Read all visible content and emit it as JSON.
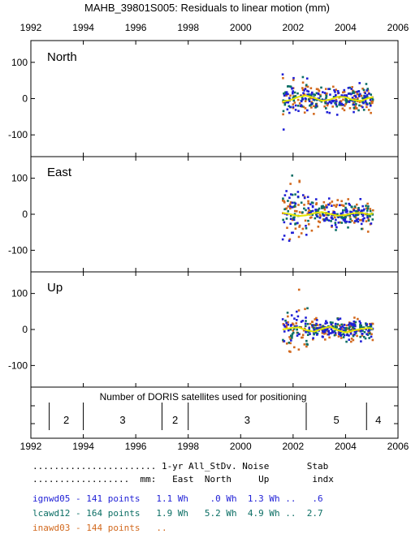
{
  "title": "MAHB_39801S005: Residuals to linear motion (mm)",
  "colors": {
    "ignwd05": "#1f1fd6",
    "lcawd12": "#0b6e64",
    "inawd03": "#d2691e",
    "fit": "#e6e600",
    "frame": "#000000"
  },
  "chart_data": [
    {
      "type": "scatter",
      "panel": "North",
      "xlim": [
        1992,
        2006
      ],
      "ylim": [
        -160,
        160
      ],
      "x_ticks": [
        1992,
        1994,
        1996,
        1998,
        2000,
        2002,
        2004,
        2006
      ],
      "x_tick_labels": [
        "1992",
        "1994",
        "1996",
        "1998",
        "2000",
        "2002",
        "2004",
        "2006"
      ],
      "y_ticks": [
        100,
        0,
        -100
      ],
      "y_tick_labels": [
        "100",
        "0",
        "-100"
      ],
      "series": [
        {
          "solution": "ignwd05",
          "x_range": [
            2001.6,
            2005.05
          ],
          "spread": 22,
          "early_spread": 35
        },
        {
          "solution": "lcawd12",
          "x_range": [
            2001.6,
            2005.05
          ],
          "spread": 20,
          "early_spread": 32
        },
        {
          "solution": "inawd03",
          "x_range": [
            2001.6,
            2005.05
          ],
          "spread": 25,
          "early_spread": 38
        }
      ],
      "fit_curve": {
        "x": [
          2001.6,
          2001.9,
          2002.2,
          2002.5,
          2002.8,
          2003.1,
          2003.4,
          2003.7,
          2004.0,
          2004.3,
          2004.6,
          2004.9,
          2005.05
        ],
        "y": [
          -8,
          -4,
          5,
          8,
          2,
          -6,
          -3,
          5,
          4,
          -4,
          -6,
          2,
          4
        ]
      }
    },
    {
      "type": "scatter",
      "panel": "East",
      "xlim": [
        1992,
        2006
      ],
      "ylim": [
        -160,
        160
      ],
      "y_ticks": [
        100,
        0,
        -100
      ],
      "y_tick_labels": [
        "100",
        "0",
        "-100"
      ],
      "series": [
        {
          "solution": "ignwd05",
          "x_range": [
            2001.6,
            2005.05
          ],
          "spread": 25,
          "early_spread": 55
        },
        {
          "solution": "lcawd12",
          "x_range": [
            2001.6,
            2005.05
          ],
          "spread": 22,
          "early_spread": 50
        },
        {
          "solution": "inawd03",
          "x_range": [
            2001.6,
            2005.05
          ],
          "spread": 27,
          "early_spread": 55
        }
      ],
      "fit_curve": {
        "x": [
          2001.6,
          2001.9,
          2002.2,
          2002.5,
          2002.8,
          2003.1,
          2003.4,
          2003.7,
          2004.0,
          2004.3,
          2004.6,
          2004.9,
          2005.05
        ],
        "y": [
          4,
          0,
          -5,
          -3,
          3,
          6,
          1,
          -4,
          -2,
          3,
          4,
          0,
          2
        ]
      }
    },
    {
      "type": "scatter",
      "panel": "Up",
      "xlim": [
        1992,
        2006
      ],
      "ylim": [
        -160,
        160
      ],
      "y_ticks": [
        100,
        0,
        -100
      ],
      "y_tick_labels": [
        "100",
        "0",
        "-100"
      ],
      "series": [
        {
          "solution": "ignwd05",
          "x_range": [
            2001.6,
            2005.05
          ],
          "spread": 18,
          "early_spread": 45
        },
        {
          "solution": "lcawd12",
          "x_range": [
            2001.6,
            2005.05
          ],
          "spread": 17,
          "early_spread": 45
        },
        {
          "solution": "inawd03",
          "x_range": [
            2001.6,
            2005.05
          ],
          "spread": 20,
          "early_spread": 50
        }
      ],
      "fit_curve": {
        "x": [
          2001.6,
          2001.9,
          2002.2,
          2002.5,
          2002.8,
          2003.1,
          2003.4,
          2003.7,
          2004.0,
          2004.3,
          2004.6,
          2004.9,
          2005.05
        ],
        "y": [
          0,
          4,
          6,
          -2,
          -6,
          2,
          8,
          -2,
          -8,
          -3,
          2,
          4,
          1
        ]
      }
    },
    {
      "type": "table",
      "panel": "satellites",
      "caption": "Number of DORIS satellites used for positioning",
      "boundaries": [
        1992.7,
        1994.0,
        1997.0,
        1998.0,
        2002.5,
        2004.8
      ],
      "segments": [
        {
          "x_center": 1993.35,
          "label": "2"
        },
        {
          "x_center": 1995.5,
          "label": "3"
        },
        {
          "x_center": 1997.5,
          "label": "2"
        },
        {
          "x_center": 2000.25,
          "label": "3"
        },
        {
          "x_center": 2003.65,
          "label": "5"
        },
        {
          "x_center": 2005.25,
          "label": "4"
        }
      ]
    }
  ],
  "summary": {
    "header1": "....................... 1-yr All_StDv. Noise       Stab",
    "header2": "..................  mm:   East  North     Up        indx",
    "rows": [
      {
        "solution": "ignwd05",
        "text": "ignwd05 - 141 points   1.1 Wh    .0 Wh  1.3 Wh ..   .6"
      },
      {
        "solution": "lcawd12",
        "text": "lcawd12 - 164 points   1.9 Wh   5.2 Wh  4.9 Wh ..  2.7"
      },
      {
        "solution": "inawd03",
        "text": "inawd03 - 144 points   .."
      }
    ]
  }
}
